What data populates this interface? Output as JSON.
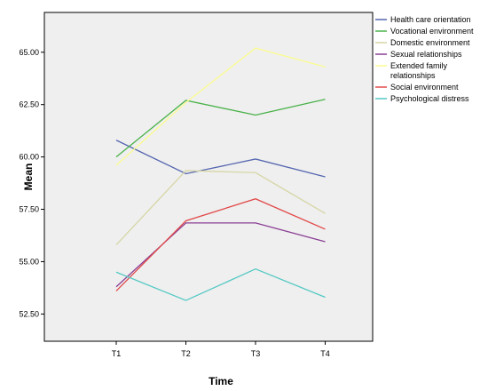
{
  "chart_data": {
    "type": "line",
    "title": "",
    "xlabel": "Time",
    "ylabel": "Mean",
    "categories": [
      "T1",
      "T2",
      "T3",
      "T4"
    ],
    "yticks": [
      "52.50",
      "55.00",
      "57.50",
      "60.00",
      "62.50",
      "65.00"
    ],
    "ylim": [
      51.2,
      66.9
    ],
    "grid": false,
    "legend_position": "right",
    "background": "#efefef",
    "series": [
      {
        "name": "Health care orientation",
        "color": "#5566b0",
        "values": [
          60.8,
          59.2,
          59.9,
          59.05
        ]
      },
      {
        "name": "Vocational environment",
        "color": "#4ab24a",
        "values": [
          60.0,
          62.7,
          62.0,
          62.75
        ]
      },
      {
        "name": "Domestic environment",
        "color": "#d6d6a6",
        "values": [
          55.8,
          59.35,
          59.25,
          57.3
        ]
      },
      {
        "name": "Sexual relationships",
        "color": "#8a3f94",
        "values": [
          53.8,
          56.85,
          56.85,
          55.95
        ]
      },
      {
        "name": "Extended family relationships",
        "color": "#fbfb90",
        "values": [
          59.6,
          62.6,
          65.2,
          64.3
        ]
      },
      {
        "name": "Social environment",
        "color": "#e24a4a",
        "values": [
          53.6,
          56.95,
          58.0,
          56.55
        ]
      },
      {
        "name": "Psychological distress",
        "color": "#55c9c4",
        "values": [
          54.5,
          53.15,
          54.65,
          53.3
        ]
      }
    ]
  }
}
